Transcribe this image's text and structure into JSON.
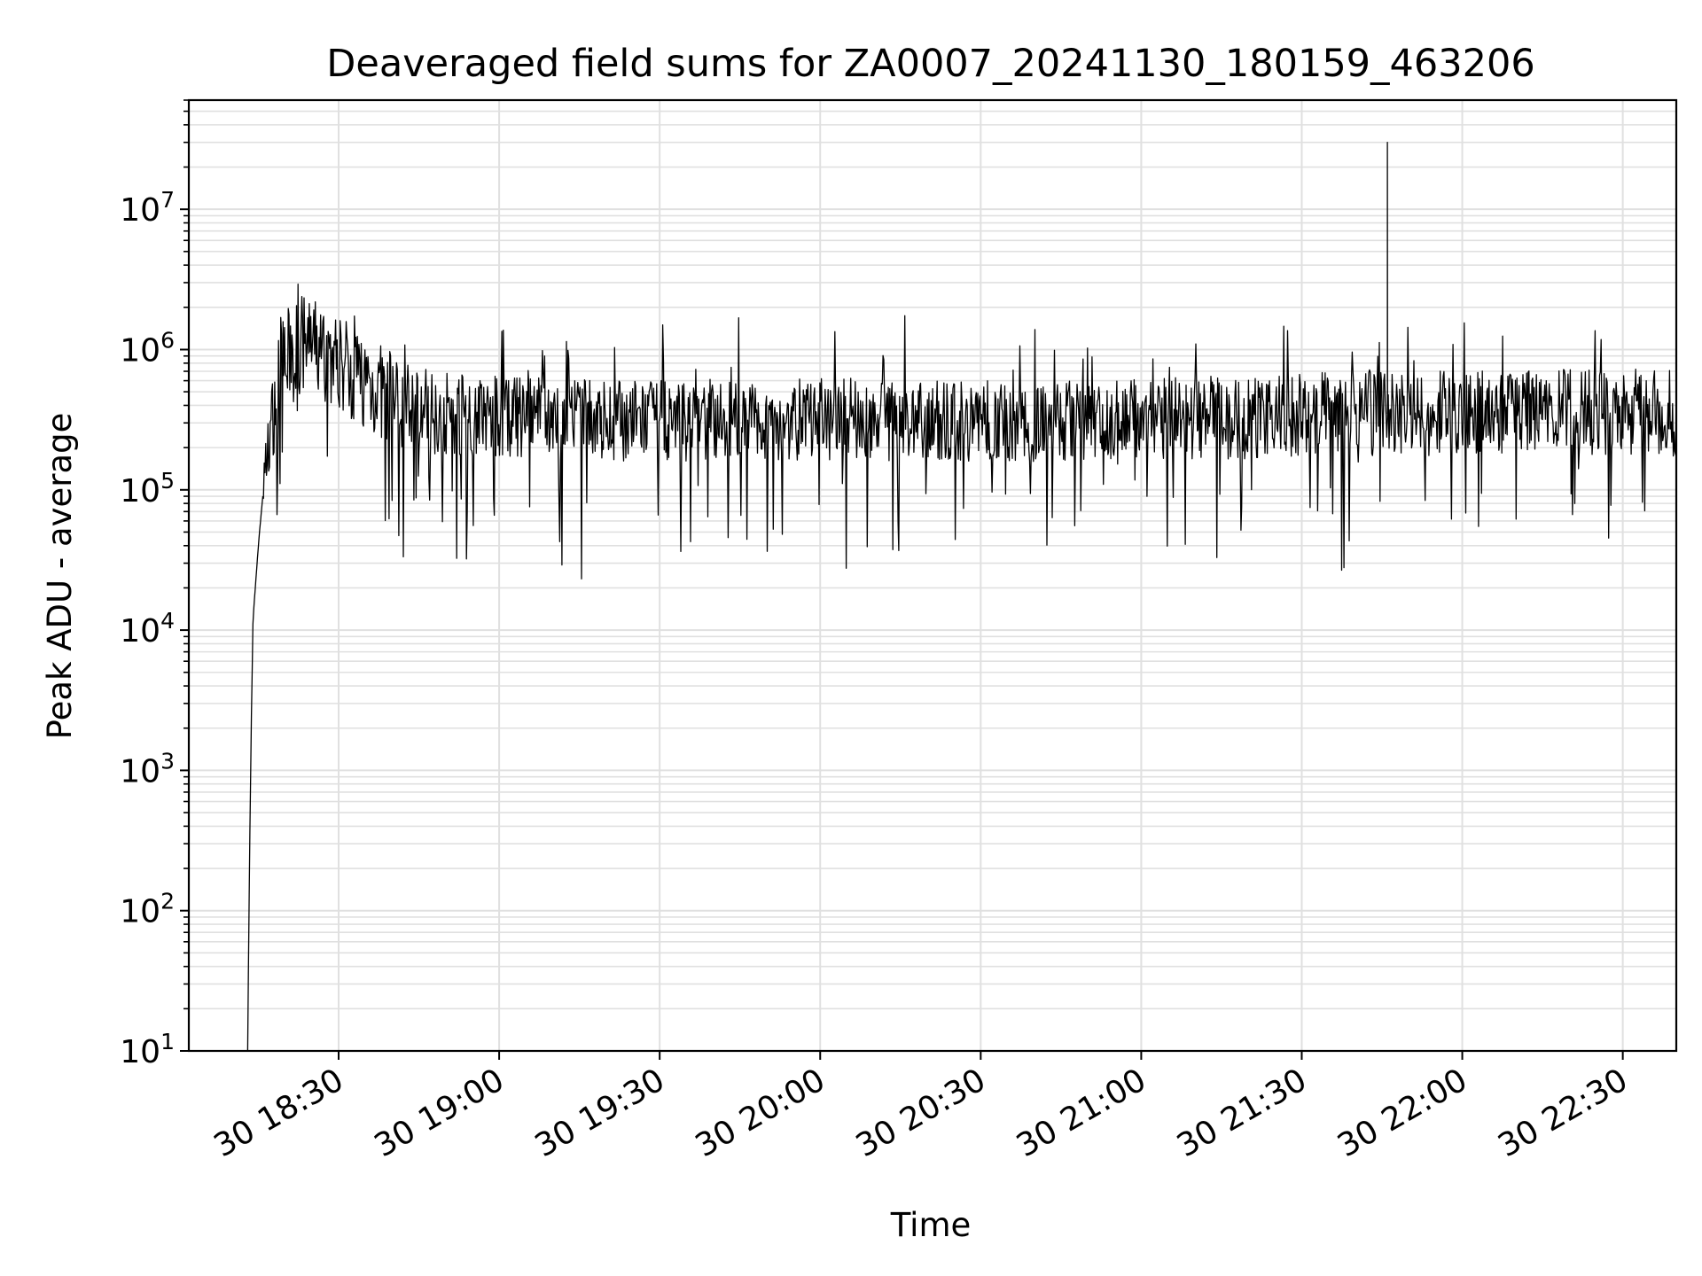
{
  "chart_data": {
    "type": "line",
    "title": "Deaveraged field sums for ZA0007_20241130_180159_463206",
    "xlabel": "Time",
    "ylabel": "Peak ADU - average",
    "y_scale": "log",
    "ylim": [
      10,
      60000000
    ],
    "xlim": [
      "2024-11-30 18:02",
      "2024-11-30 22:40"
    ],
    "x_ticks": [
      {
        "value": "2024-11-30 18:30",
        "label": "30 18:30"
      },
      {
        "value": "2024-11-30 19:00",
        "label": "30 19:00"
      },
      {
        "value": "2024-11-30 19:30",
        "label": "30 19:30"
      },
      {
        "value": "2024-11-30 20:00",
        "label": "30 20:00"
      },
      {
        "value": "2024-11-30 20:30",
        "label": "30 20:30"
      },
      {
        "value": "2024-11-30 21:00",
        "label": "30 21:00"
      },
      {
        "value": "2024-11-30 21:30",
        "label": "30 21:30"
      },
      {
        "value": "2024-11-30 22:00",
        "label": "30 22:00"
      },
      {
        "value": "2024-11-30 22:30",
        "label": "30 22:30"
      }
    ],
    "y_ticks": [
      {
        "value": 10,
        "base": "10",
        "exp": "1"
      },
      {
        "value": 100,
        "base": "10",
        "exp": "2"
      },
      {
        "value": 1000,
        "base": "10",
        "exp": "3"
      },
      {
        "value": 10000,
        "base": "10",
        "exp": "4"
      },
      {
        "value": 100000,
        "base": "10",
        "exp": "5"
      },
      {
        "value": 1000000,
        "base": "10",
        "exp": "6"
      },
      {
        "value": 10000000,
        "base": "10",
        "exp": "7"
      }
    ],
    "grid": true,
    "line_color": "#000000",
    "grid_color": "#e0e0e0",
    "series": [
      {
        "x": [
          "2024-11-30 18:13",
          "2024-11-30 18:13:20",
          "2024-11-30 18:13:40",
          "2024-11-30 18:14",
          "2024-11-30 18:15",
          "2024-11-30 18:16",
          "2024-11-30 18:17",
          "2024-11-30 18:18",
          "2024-11-30 18:19",
          "2024-11-30 18:20",
          "2024-11-30 18:21",
          "2024-11-30 18:22",
          "2024-11-30 18:24",
          "2024-11-30 18:26",
          "2024-11-30 18:28",
          "2024-11-30 18:30",
          "2024-11-30 18:33",
          "2024-11-30 18:36",
          "2024-11-30 18:40",
          "2024-11-30 18:45",
          "2024-11-30 18:50",
          "2024-11-30 19:00",
          "2024-11-30 19:12",
          "2024-11-30 19:30",
          "2024-11-30 19:50",
          "2024-11-30 20:00",
          "2024-11-30 20:20",
          "2024-11-30 20:40",
          "2024-11-30 21:00",
          "2024-11-30 21:20",
          "2024-11-30 21:30",
          "2024-11-30 21:45",
          "2024-11-30 21:46",
          "2024-11-30 22:00",
          "2024-11-30 22:12",
          "2024-11-30 22:30",
          "2024-11-30 22:40"
        ],
        "y": [
          10,
          200,
          2000,
          12000,
          40000,
          110000,
          230000,
          400000,
          600000,
          800000,
          950000,
          1050000,
          1100000,
          1000000,
          900000,
          800000,
          700000,
          550000,
          450000,
          380000,
          350000,
          330000,
          320000,
          310000,
          310000,
          320000,
          310000,
          310000,
          320000,
          330000,
          340000,
          350000,
          30000000,
          350000,
          360000,
          360000,
          350000
        ],
        "noise_amplitude_decades": 0.35
      }
    ]
  }
}
